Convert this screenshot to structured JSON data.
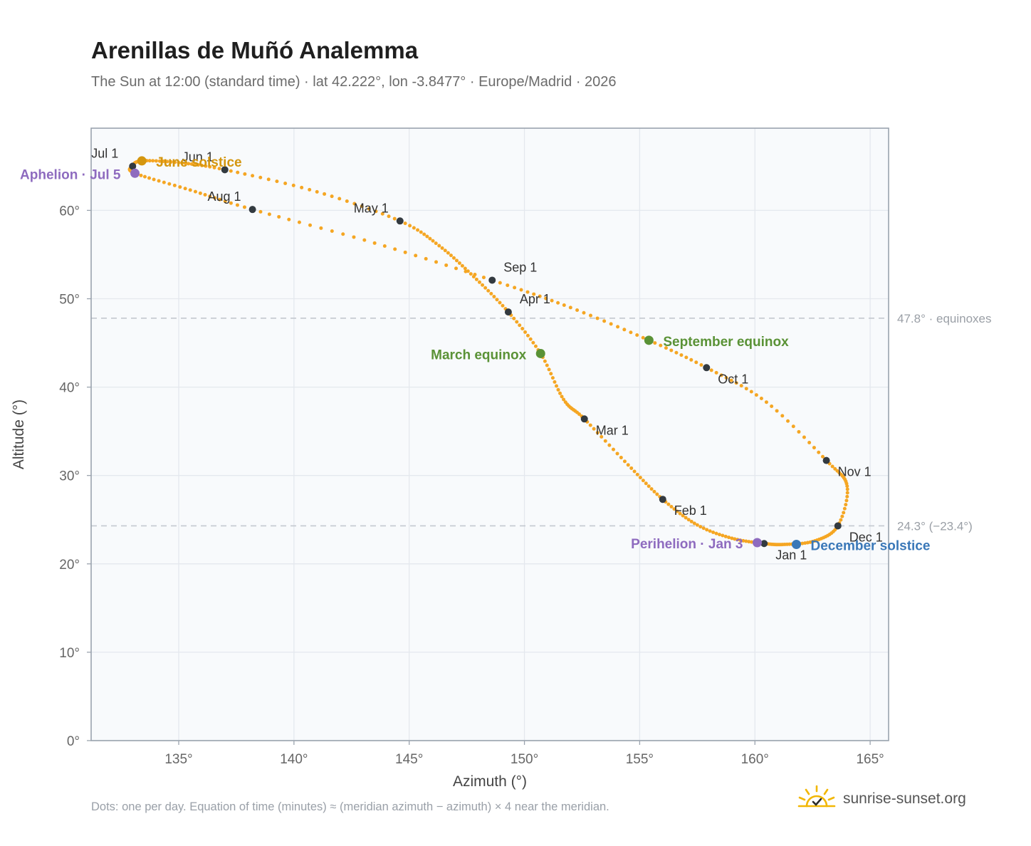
{
  "title": "Arenillas de Muñó Analemma",
  "subtitle": "The Sun at 12:00 (standard time) · lat 42.222°, lon -3.8477° · Europe/Madrid · 2026",
  "footnote": "Dots: one per day. Equation of time (minutes) ≈ (meridian azimuth − azimuth) × 4 near the meridian.",
  "brand": {
    "text": "sunrise-sunset.org",
    "icon": "sun-check-icon"
  },
  "colors": {
    "curve": "#f5a623",
    "month_dot": "#333a40",
    "solstice_june": "#d4960f",
    "solstice_december": "#3a78b8",
    "equinox": "#5a9236",
    "apsis": "#8e6bbf",
    "reference_line": "#c3c8cf",
    "plot_bg": "#f8fafc",
    "frame": "#9aa3ae"
  },
  "chart_data": {
    "type": "scatter",
    "xlabel": "Azimuth (°)",
    "ylabel": "Altitude (°)",
    "xlim": [
      131.2,
      165.8
    ],
    "ylim": [
      0,
      69.3
    ],
    "x_ticks": [
      135,
      140,
      145,
      150,
      155,
      160,
      165
    ],
    "x_tick_labels": [
      "135°",
      "140°",
      "145°",
      "150°",
      "155°",
      "160°",
      "165°"
    ],
    "y_ticks": [
      0,
      10,
      20,
      30,
      40,
      50,
      60
    ],
    "y_tick_labels": [
      "0°",
      "10°",
      "20°",
      "30°",
      "40°",
      "50°",
      "60°"
    ],
    "grid": true,
    "reference_lines": [
      {
        "y": 47.8,
        "label": "47.8° · equinoxes"
      },
      {
        "y": 24.3,
        "label": "24.3° (−23.4°)"
      }
    ],
    "series": [
      {
        "points": [
          [
            161.3,
            22.2
          ],
          [
            160.4,
            22.3
          ],
          [
            159.0,
            22.9
          ],
          [
            157.5,
            24.4
          ],
          [
            156.0,
            27.3
          ],
          [
            154.5,
            31.2
          ],
          [
            152.6,
            36.4
          ],
          [
            151.7,
            38.6
          ],
          [
            150.7,
            43.8
          ],
          [
            149.3,
            48.5
          ],
          [
            147.8,
            52.5
          ],
          [
            146.3,
            56.0
          ],
          [
            144.6,
            58.8
          ],
          [
            141.0,
            62.1
          ],
          [
            137.0,
            64.6
          ],
          [
            135.0,
            65.4
          ],
          [
            133.4,
            65.6
          ],
          [
            133.0,
            65.0
          ],
          [
            133.1,
            64.2
          ],
          [
            135.5,
            62.3
          ],
          [
            138.2,
            60.1
          ],
          [
            143.5,
            56.3
          ],
          [
            148.6,
            52.1
          ],
          [
            152.0,
            49.0
          ],
          [
            155.4,
            45.3
          ],
          [
            157.9,
            42.2
          ],
          [
            160.5,
            38.3
          ],
          [
            163.1,
            31.7
          ],
          [
            164.0,
            28.8
          ],
          [
            163.6,
            24.3
          ],
          [
            162.6,
            22.6
          ],
          [
            161.3,
            22.2
          ]
        ]
      }
    ],
    "month_markers": [
      {
        "label": "Jan 1",
        "x": 160.4,
        "y": 22.3
      },
      {
        "label": "Feb 1",
        "x": 156.0,
        "y": 27.3
      },
      {
        "label": "Mar 1",
        "x": 152.6,
        "y": 36.4
      },
      {
        "label": "Apr 1",
        "x": 149.3,
        "y": 48.5
      },
      {
        "label": "May 1",
        "x": 144.6,
        "y": 58.8
      },
      {
        "label": "Jun 1",
        "x": 137.0,
        "y": 64.6
      },
      {
        "label": "Jul 1",
        "x": 133.0,
        "y": 65.0
      },
      {
        "label": "Aug 1",
        "x": 138.2,
        "y": 60.1
      },
      {
        "label": "Sep 1",
        "x": 148.6,
        "y": 52.1
      },
      {
        "label": "Oct 1",
        "x": 157.9,
        "y": 42.2
      },
      {
        "label": "Nov 1",
        "x": 163.1,
        "y": 31.7
      },
      {
        "label": "Dec 1",
        "x": 163.6,
        "y": 24.3
      }
    ],
    "events": [
      {
        "label": "June solstice",
        "x": 133.4,
        "y": 65.6,
        "color": "#d4960f"
      },
      {
        "label": "Aphelion · Jul 5",
        "x": 133.1,
        "y": 64.2,
        "color": "#8e6bbf"
      },
      {
        "label": "March equinox",
        "x": 150.7,
        "y": 43.8,
        "color": "#5a9236"
      },
      {
        "label": "September equinox",
        "x": 155.4,
        "y": 45.3,
        "color": "#5a9236"
      },
      {
        "label": "Perihelion · Jan 3",
        "x": 160.1,
        "y": 22.4,
        "color": "#8e6bbf"
      },
      {
        "label": "December solstice",
        "x": 161.8,
        "y": 22.2,
        "color": "#3a78b8"
      }
    ]
  }
}
